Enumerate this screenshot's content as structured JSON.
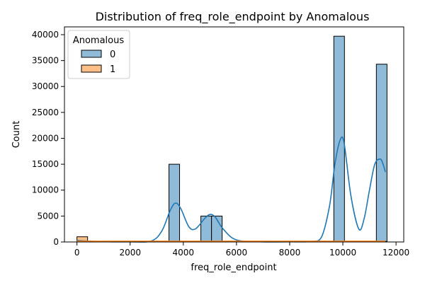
{
  "chart_data": {
    "type": "histogram",
    "title": "Distribution of freq_role_endpoint by Anomalous",
    "xlabel": "freq_role_endpoint",
    "ylabel": "Count",
    "xlim": [
      -470,
      12290
    ],
    "ylim": [
      0,
      41500
    ],
    "x_ticks": [
      0,
      2000,
      4000,
      6000,
      8000,
      10000,
      12000
    ],
    "y_ticks": [
      0,
      5000,
      10000,
      15000,
      20000,
      25000,
      30000,
      35000,
      40000
    ],
    "legend": {
      "title": "Anomalous",
      "position": "top-left"
    },
    "series": [
      {
        "name": "0",
        "color": "#1f77b4",
        "bars": [
          {
            "x0": 3460,
            "x1": 3860,
            "count": 15000
          },
          {
            "x0": 4660,
            "x1": 5060,
            "count": 5000
          },
          {
            "x0": 5060,
            "x1": 5460,
            "count": 5000
          },
          {
            "x0": 9660,
            "x1": 10060,
            "count": 39700
          },
          {
            "x0": 11260,
            "x1": 11660,
            "count": 34300
          }
        ],
        "kde": [
          [
            0,
            300
          ],
          [
            500,
            150
          ],
          [
            1000,
            60
          ],
          [
            2000,
            30
          ],
          [
            2800,
            200
          ],
          [
            3200,
            2200
          ],
          [
            3500,
            6000
          ],
          [
            3700,
            7500
          ],
          [
            3900,
            6500
          ],
          [
            4200,
            3000
          ],
          [
            4450,
            2500
          ],
          [
            4800,
            4500
          ],
          [
            5000,
            5300
          ],
          [
            5200,
            4800
          ],
          [
            5500,
            2500
          ],
          [
            6000,
            400
          ],
          [
            7000,
            30
          ],
          [
            8000,
            40
          ],
          [
            8800,
            100
          ],
          [
            9200,
            1000
          ],
          [
            9500,
            7000
          ],
          [
            9700,
            15000
          ],
          [
            9900,
            19700
          ],
          [
            10050,
            19000
          ],
          [
            10300,
            9000
          ],
          [
            10600,
            2500
          ],
          [
            10800,
            4500
          ],
          [
            11000,
            10000
          ],
          [
            11200,
            15000
          ],
          [
            11400,
            16000
          ],
          [
            11500,
            15200
          ],
          [
            11600,
            13500
          ]
        ]
      },
      {
        "name": "1",
        "color": "#ff7f0e",
        "bars": [
          {
            "x0": 0,
            "x1": 400,
            "count": 1000
          },
          {
            "x0": 400,
            "x1": 11660,
            "count": 100
          }
        ],
        "kde": [
          [
            0,
            150
          ],
          [
            11600,
            150
          ]
        ]
      }
    ]
  }
}
